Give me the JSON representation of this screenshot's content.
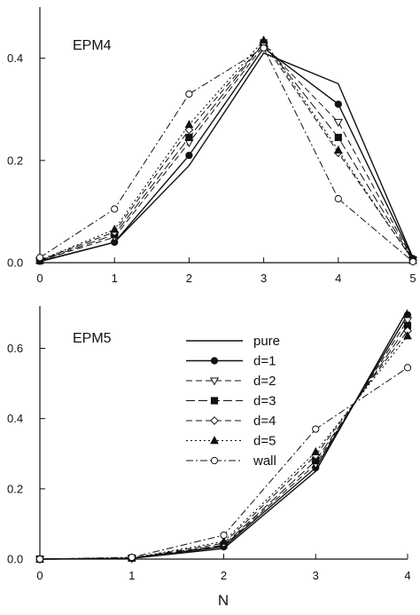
{
  "chart_data": [
    {
      "type": "line",
      "panel_label": "EPM4",
      "xlabel": "",
      "x": [
        0,
        1,
        2,
        3,
        4,
        5
      ],
      "xlim": [
        0,
        5
      ],
      "ylim": [
        0,
        0.5
      ],
      "xticks": [
        0,
        1,
        2,
        3,
        4,
        5
      ],
      "yticks": [
        0.0,
        0.2,
        0.4
      ],
      "ytick_labels": [
        "0.0",
        "0.2",
        "0.4"
      ],
      "grid": false,
      "series": [
        {
          "name": "pure",
          "marker": "none",
          "dash": "solid",
          "values": [
            0.002,
            0.04,
            0.19,
            0.41,
            0.35,
            0.01
          ]
        },
        {
          "name": "d=1",
          "marker": "filled-circle",
          "dash": "solid",
          "values": [
            0.003,
            0.04,
            0.21,
            0.42,
            0.31,
            0.008
          ]
        },
        {
          "name": "d=2",
          "marker": "open-triangle-down",
          "dash": "dash",
          "values": [
            0.004,
            0.05,
            0.235,
            0.425,
            0.275,
            0.006
          ]
        },
        {
          "name": "d=3",
          "marker": "filled-square",
          "dash": "longdash",
          "values": [
            0.004,
            0.055,
            0.245,
            0.43,
            0.245,
            0.005
          ]
        },
        {
          "name": "d=4",
          "marker": "open-diamond",
          "dash": "dash",
          "values": [
            0.005,
            0.06,
            0.26,
            0.43,
            0.215,
            0.005
          ]
        },
        {
          "name": "d=5",
          "marker": "filled-triangle-up",
          "dash": "dot",
          "values": [
            0.005,
            0.065,
            0.27,
            0.435,
            0.22,
            0.004
          ]
        },
        {
          "name": "wall",
          "marker": "open-circle",
          "dash": "dashdot",
          "values": [
            0.01,
            0.105,
            0.33,
            0.42,
            0.125,
            0.002
          ]
        }
      ]
    },
    {
      "type": "line",
      "panel_label": "EPM5",
      "xlabel": "N",
      "x": [
        0,
        1,
        2,
        3,
        4
      ],
      "xlim": [
        0,
        4
      ],
      "ylim": [
        0,
        0.72
      ],
      "xticks": [
        0,
        1,
        2,
        3,
        4
      ],
      "yticks": [
        0.0,
        0.2,
        0.4,
        0.6
      ],
      "ytick_labels": [
        "0.0",
        "0.2",
        "0.4",
        "0.6"
      ],
      "grid": false,
      "legend_position": "top-middle",
      "series": [
        {
          "name": "pure",
          "marker": "none",
          "dash": "solid",
          "values": [
            0.0,
            0.002,
            0.03,
            0.25,
            0.71
          ]
        },
        {
          "name": "d=1",
          "marker": "filled-circle",
          "dash": "solid",
          "values": [
            0.0,
            0.002,
            0.035,
            0.26,
            0.695
          ]
        },
        {
          "name": "d=2",
          "marker": "open-triangle-down",
          "dash": "dash",
          "values": [
            0.0,
            0.002,
            0.038,
            0.27,
            0.68
          ]
        },
        {
          "name": "d=3",
          "marker": "filled-square",
          "dash": "longdash",
          "values": [
            0.0,
            0.003,
            0.04,
            0.28,
            0.665
          ]
        },
        {
          "name": "d=4",
          "marker": "open-diamond",
          "dash": "dash",
          "values": [
            0.0,
            0.003,
            0.045,
            0.295,
            0.65
          ]
        },
        {
          "name": "d=5",
          "marker": "filled-triangle-up",
          "dash": "dot",
          "values": [
            0.0,
            0.003,
            0.05,
            0.305,
            0.635
          ]
        },
        {
          "name": "wall",
          "marker": "open-circle",
          "dash": "dashdot",
          "values": [
            0.0,
            0.005,
            0.068,
            0.37,
            0.545
          ]
        }
      ]
    }
  ]
}
